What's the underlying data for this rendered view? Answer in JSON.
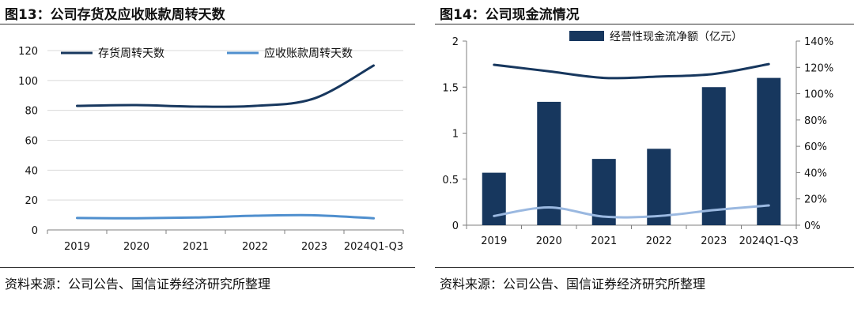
{
  "left": {
    "figure_title": "图13：公司存货及应收账款周转天数",
    "source": "资料来源：公司公告、国信证券经济研究所整理"
  },
  "right": {
    "figure_title": "图14：公司现金流情况",
    "source": "资料来源：公司公告、国信证券经济研究所整理"
  },
  "colors": {
    "dark_navy": "#17375e",
    "light_blue": "#4f8fce",
    "pale_blue": "#9ab8e0",
    "bar_navy": "#17375e"
  },
  "chart_data": [
    {
      "type": "line",
      "title": "图13：公司存货及应收账款周转天数",
      "categories": [
        "2019",
        "2020",
        "2021",
        "2022",
        "2023",
        "2024Q1-Q3"
      ],
      "ylim": [
        0,
        120
      ],
      "yticks": [
        "0",
        "20",
        "40",
        "60",
        "80",
        "100",
        "120"
      ],
      "grid": true,
      "legend": "top",
      "series": [
        {
          "name": "存货周转天数",
          "values": [
            83,
            83.5,
            82.5,
            83,
            88,
            110
          ],
          "color": "#17375e"
        },
        {
          "name": "应收账款周转天数",
          "values": [
            8,
            7.8,
            8.3,
            9.5,
            9.8,
            7.8
          ],
          "color": "#4f8fce"
        }
      ]
    },
    {
      "type": "bar",
      "title": "图14：公司现金流情况",
      "categories": [
        "2019",
        "2020",
        "2021",
        "2022",
        "2023",
        "2024Q1-Q3"
      ],
      "ylim": [
        0,
        2
      ],
      "yticks": [
        "0",
        "0.5",
        "1",
        "1.5",
        "2"
      ],
      "y2lim": [
        0,
        140
      ],
      "y2ticks": [
        "0%",
        "20%",
        "40%",
        "60%",
        "80%",
        "100%",
        "120%",
        "140%"
      ],
      "legend": "top",
      "series": [
        {
          "name": "经营性现金流净额（亿元）",
          "type": "bar",
          "axis": "left",
          "values": [
            0.57,
            1.34,
            0.72,
            0.83,
            1.5,
            1.6
          ],
          "color": "#17375e"
        },
        {
          "type": "line",
          "axis": "right",
          "values": [
            122,
            117,
            112,
            113,
            115,
            122.5
          ],
          "color": "#17375e"
        },
        {
          "type": "line",
          "axis": "right",
          "values": [
            7,
            13.5,
            6.5,
            7,
            11.5,
            15
          ],
          "color": "#9ab8e0"
        }
      ]
    }
  ]
}
